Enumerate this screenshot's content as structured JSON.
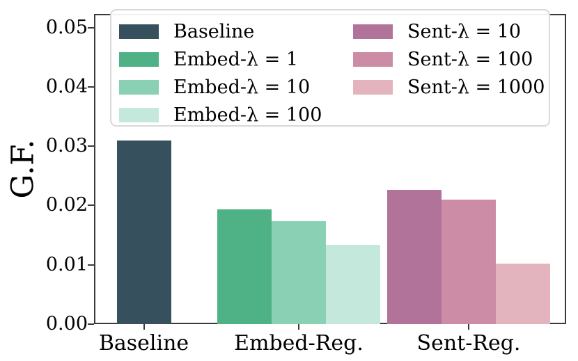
{
  "chart_data": {
    "type": "bar",
    "title": "",
    "xlabel": "",
    "ylabel": "G.F.",
    "ylim": [
      0,
      0.0523
    ],
    "grid": false,
    "yticks": [
      {
        "value": 0.0,
        "label": "0.00"
      },
      {
        "value": 0.01,
        "label": "0.01"
      },
      {
        "value": 0.02,
        "label": "0.02"
      },
      {
        "value": 0.03,
        "label": "0.03"
      },
      {
        "value": 0.04,
        "label": "0.04"
      },
      {
        "value": 0.05,
        "label": "0.05"
      }
    ],
    "groups": [
      {
        "category": "Baseline",
        "bars": [
          {
            "name": "Baseline",
            "value": 0.031,
            "color": "#37505d"
          }
        ]
      },
      {
        "category": "Embed-Reg.",
        "bars": [
          {
            "name": "Embed-λ = 1",
            "value": 0.0194,
            "color": "#4fb286"
          },
          {
            "name": "Embed-λ = 10",
            "value": 0.0174,
            "color": "#8ad0b5"
          },
          {
            "name": "Embed-λ = 100",
            "value": 0.0134,
            "color": "#c5e8dc"
          }
        ]
      },
      {
        "category": "Sent-Reg.",
        "bars": [
          {
            "name": "Sent-λ = 10",
            "value": 0.0226,
            "color": "#b2739b"
          },
          {
            "name": "Sent-λ = 100",
            "value": 0.021,
            "color": "#cd8ca5"
          },
          {
            "name": "Sent-λ = 1000",
            "value": 0.0102,
            "color": "#e3b4be"
          }
        ]
      }
    ],
    "legend": {
      "position": "upper center",
      "columns": [
        {
          "entries": [
            {
              "label": "Baseline",
              "color": "#37505d"
            },
            {
              "label": "Embed-λ = 1",
              "color": "#4fb286"
            },
            {
              "label": "Embed-λ = 10",
              "color": "#8ad0b5"
            },
            {
              "label": "Embed-λ = 100",
              "color": "#c5e8dc"
            }
          ]
        },
        {
          "entries": [
            {
              "label": "Sent-λ = 10",
              "color": "#b2739b"
            },
            {
              "label": "Sent-λ = 100",
              "color": "#cd8ca5"
            },
            {
              "label": "Sent-λ = 1000",
              "color": "#e3b4be"
            }
          ]
        }
      ]
    }
  }
}
